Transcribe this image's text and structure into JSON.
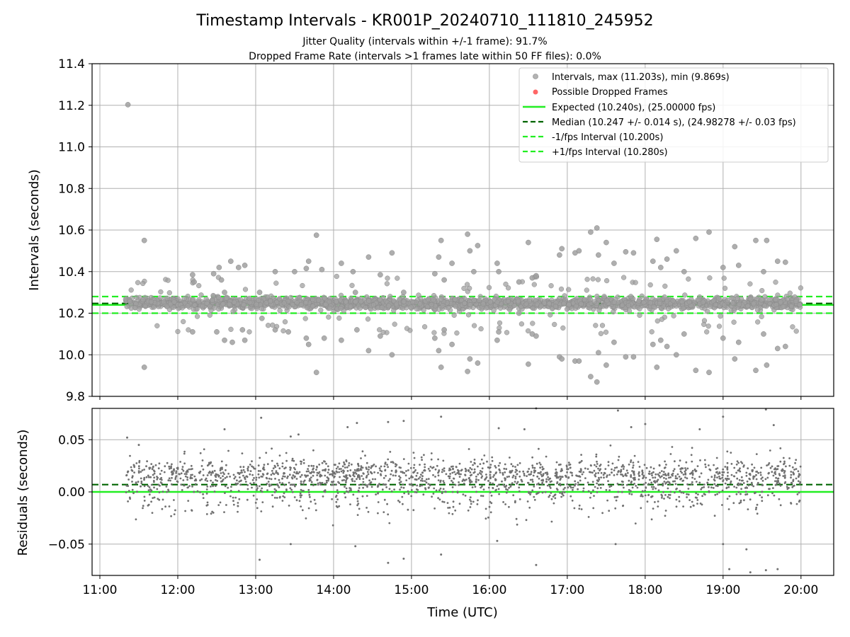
{
  "chart_data": [
    {
      "type": "scatter",
      "panel": "top",
      "title": "Timestamp Intervals - KR001P_20240710_111810_245952",
      "subtitle_lines": [
        "Jitter Quality (intervals within +/-1 frame): 91.7%",
        "Dropped Frame Rate (intervals >1 frames late within 50 FF files): 0.0%"
      ],
      "ylabel": "Intervals (seconds)",
      "ylim": [
        9.8,
        11.4
      ],
      "yticks": [
        "9.8",
        "10.0",
        "10.2",
        "10.4",
        "10.6",
        "10.8",
        "11.0",
        "11.2",
        "11.4"
      ],
      "xlim_hours": [
        10.9,
        20.42
      ],
      "grid": true,
      "legend_position": "top-right",
      "x_range_hours": [
        11.33,
        20.0
      ],
      "series": [
        {
          "name": "Intervals, max (11.203s), min (9.869s)",
          "color": "#a0a0a0",
          "type": "scatter",
          "core_center": 10.247,
          "core_spread": 0.014,
          "max": 11.203,
          "min": 9.869,
          "count": 1800
        },
        {
          "name": "Possible Dropped Frames",
          "color": "#ff6666",
          "type": "scatter",
          "count": 0
        },
        {
          "name": "Expected (10.240s), (25.00000 fps)",
          "color": "#22ee22",
          "type": "hline",
          "y": 10.24,
          "dash": "solid"
        },
        {
          "name": "Median (10.247 +/- 0.014 s), (24.98278 +/- 0.03 fps)",
          "color": "#006400",
          "type": "hline",
          "y": 10.247,
          "dash": "dashed"
        },
        {
          "name": "-1/fps Interval (10.200s)",
          "color": "#22ee22",
          "type": "hline",
          "y": 10.2,
          "dash": "dashed"
        },
        {
          "name": "+1/fps Interval (10.280s)",
          "color": "#22ee22",
          "type": "hline",
          "y": 10.28,
          "dash": "dashed"
        }
      ],
      "outliers": [
        {
          "x": 11.36,
          "y": 11.203
        },
        {
          "x": 11.57,
          "y": 10.55
        },
        {
          "x": 11.57,
          "y": 9.94
        },
        {
          "x": 12.19,
          "y": 10.385
        },
        {
          "x": 12.19,
          "y": 10.11
        },
        {
          "x": 12.21,
          "y": 10.35
        },
        {
          "x": 12.46,
          "y": 10.39
        },
        {
          "x": 12.5,
          "y": 10.11
        },
        {
          "x": 12.53,
          "y": 10.42
        },
        {
          "x": 12.56,
          "y": 10.36
        },
        {
          "x": 12.6,
          "y": 10.3
        },
        {
          "x": 12.6,
          "y": 10.07
        },
        {
          "x": 12.68,
          "y": 10.45
        },
        {
          "x": 12.7,
          "y": 10.06
        },
        {
          "x": 12.78,
          "y": 10.42
        },
        {
          "x": 12.83,
          "y": 10.12
        },
        {
          "x": 12.86,
          "y": 10.43
        },
        {
          "x": 12.86,
          "y": 10.07
        },
        {
          "x": 13.05,
          "y": 10.3
        },
        {
          "x": 13.08,
          "y": 10.175
        },
        {
          "x": 13.25,
          "y": 10.4
        },
        {
          "x": 13.25,
          "y": 10.12
        },
        {
          "x": 13.42,
          "y": 10.11
        },
        {
          "x": 13.5,
          "y": 10.4
        },
        {
          "x": 13.65,
          "y": 10.415
        },
        {
          "x": 13.65,
          "y": 10.08
        },
        {
          "x": 13.68,
          "y": 10.45
        },
        {
          "x": 13.68,
          "y": 10.05
        },
        {
          "x": 13.78,
          "y": 10.575
        },
        {
          "x": 13.78,
          "y": 9.915
        },
        {
          "x": 13.85,
          "y": 10.41
        },
        {
          "x": 13.88,
          "y": 10.08
        },
        {
          "x": 14.1,
          "y": 10.44
        },
        {
          "x": 14.1,
          "y": 10.07
        },
        {
          "x": 14.25,
          "y": 10.4
        },
        {
          "x": 14.28,
          "y": 10.3
        },
        {
          "x": 14.3,
          "y": 10.12
        },
        {
          "x": 14.45,
          "y": 10.47
        },
        {
          "x": 14.45,
          "y": 10.02
        },
        {
          "x": 14.6,
          "y": 10.385
        },
        {
          "x": 14.6,
          "y": 10.09
        },
        {
          "x": 14.75,
          "y": 10.49
        },
        {
          "x": 14.75,
          "y": 10.0
        },
        {
          "x": 14.9,
          "y": 10.3
        },
        {
          "x": 15.3,
          "y": 10.39
        },
        {
          "x": 15.3,
          "y": 10.08
        },
        {
          "x": 15.35,
          "y": 10.47
        },
        {
          "x": 15.35,
          "y": 10.02
        },
        {
          "x": 15.38,
          "y": 10.55
        },
        {
          "x": 15.38,
          "y": 9.94
        },
        {
          "x": 15.42,
          "y": 10.36
        },
        {
          "x": 15.42,
          "y": 10.12
        },
        {
          "x": 15.52,
          "y": 10.44
        },
        {
          "x": 15.52,
          "y": 10.05
        },
        {
          "x": 15.72,
          "y": 10.58
        },
        {
          "x": 15.72,
          "y": 9.92
        },
        {
          "x": 15.75,
          "y": 10.5
        },
        {
          "x": 15.75,
          "y": 9.98
        },
        {
          "x": 15.8,
          "y": 10.4
        },
        {
          "x": 15.85,
          "y": 10.525
        },
        {
          "x": 15.85,
          "y": 9.96
        },
        {
          "x": 16.1,
          "y": 10.44
        },
        {
          "x": 16.1,
          "y": 10.07
        },
        {
          "x": 16.12,
          "y": 10.4
        },
        {
          "x": 16.12,
          "y": 10.11
        },
        {
          "x": 16.38,
          "y": 10.35
        },
        {
          "x": 16.38,
          "y": 10.2
        },
        {
          "x": 16.5,
          "y": 10.54
        },
        {
          "x": 16.5,
          "y": 9.955
        },
        {
          "x": 16.55,
          "y": 10.37
        },
        {
          "x": 16.55,
          "y": 10.1
        },
        {
          "x": 16.6,
          "y": 10.38
        },
        {
          "x": 16.6,
          "y": 10.09
        },
        {
          "x": 16.9,
          "y": 10.48
        },
        {
          "x": 16.9,
          "y": 9.99
        },
        {
          "x": 16.93,
          "y": 10.51
        },
        {
          "x": 16.93,
          "y": 9.98
        },
        {
          "x": 17.1,
          "y": 10.49
        },
        {
          "x": 17.1,
          "y": 9.97
        },
        {
          "x": 17.15,
          "y": 10.5
        },
        {
          "x": 17.15,
          "y": 9.97
        },
        {
          "x": 17.3,
          "y": 10.59
        },
        {
          "x": 17.3,
          "y": 9.895
        },
        {
          "x": 17.38,
          "y": 10.61
        },
        {
          "x": 17.38,
          "y": 9.869
        },
        {
          "x": 17.4,
          "y": 10.48
        },
        {
          "x": 17.4,
          "y": 10.01
        },
        {
          "x": 17.5,
          "y": 10.54
        },
        {
          "x": 17.5,
          "y": 9.95
        },
        {
          "x": 17.6,
          "y": 10.44
        },
        {
          "x": 17.6,
          "y": 10.06
        },
        {
          "x": 17.75,
          "y": 10.495
        },
        {
          "x": 17.75,
          "y": 9.99
        },
        {
          "x": 17.85,
          "y": 10.49
        },
        {
          "x": 17.85,
          "y": 9.99
        },
        {
          "x": 18.1,
          "y": 10.45
        },
        {
          "x": 18.1,
          "y": 10.05
        },
        {
          "x": 18.15,
          "y": 10.555
        },
        {
          "x": 18.15,
          "y": 9.94
        },
        {
          "x": 18.2,
          "y": 10.42
        },
        {
          "x": 18.2,
          "y": 10.07
        },
        {
          "x": 18.28,
          "y": 10.46
        },
        {
          "x": 18.28,
          "y": 10.04
        },
        {
          "x": 18.4,
          "y": 10.5
        },
        {
          "x": 18.4,
          "y": 10.0
        },
        {
          "x": 18.5,
          "y": 10.4
        },
        {
          "x": 18.5,
          "y": 10.1
        },
        {
          "x": 18.65,
          "y": 10.56
        },
        {
          "x": 18.65,
          "y": 9.925
        },
        {
          "x": 18.82,
          "y": 10.59
        },
        {
          "x": 18.82,
          "y": 9.915
        },
        {
          "x": 19.0,
          "y": 10.42
        },
        {
          "x": 19.0,
          "y": 10.08
        },
        {
          "x": 19.15,
          "y": 10.52
        },
        {
          "x": 19.15,
          "y": 9.98
        },
        {
          "x": 19.2,
          "y": 10.43
        },
        {
          "x": 19.2,
          "y": 10.06
        },
        {
          "x": 19.42,
          "y": 10.55
        },
        {
          "x": 19.42,
          "y": 9.925
        },
        {
          "x": 19.52,
          "y": 10.4
        },
        {
          "x": 19.52,
          "y": 10.1
        },
        {
          "x": 19.56,
          "y": 10.55
        },
        {
          "x": 19.56,
          "y": 9.95
        },
        {
          "x": 19.7,
          "y": 10.45
        },
        {
          "x": 19.7,
          "y": 10.03
        },
        {
          "x": 19.8,
          "y": 10.445
        },
        {
          "x": 19.8,
          "y": 10.04
        }
      ]
    },
    {
      "type": "scatter",
      "panel": "bottom",
      "ylabel": "Residuals (seconds)",
      "xlabel": "Time (UTC)",
      "ylim": [
        -0.08,
        0.08
      ],
      "yticks": [
        "−0.05",
        "0.00",
        "0.05"
      ],
      "xticks": [
        "11:00",
        "12:00",
        "13:00",
        "14:00",
        "15:00",
        "16:00",
        "17:00",
        "18:00",
        "19:00",
        "20:00"
      ],
      "xtick_hours": [
        11,
        12,
        13,
        14,
        15,
        16,
        17,
        18,
        19,
        20
      ],
      "grid": true,
      "series": [
        {
          "name": "residuals",
          "color": "#707070",
          "type": "scatter",
          "core_center": 0.008,
          "core_spread": 0.014,
          "count": 2000
        },
        {
          "name": "expected",
          "color": "#22ee22",
          "type": "hline",
          "y": 0.0,
          "dash": "solid"
        },
        {
          "name": "median",
          "color": "#006400",
          "type": "hline",
          "y": 0.007,
          "dash": "dashed"
        }
      ],
      "outliers": [
        {
          "x": 11.35,
          "y": 0.052
        },
        {
          "x": 11.5,
          "y": 0.045
        },
        {
          "x": 12.6,
          "y": 0.06
        },
        {
          "x": 13.07,
          "y": 0.071
        },
        {
          "x": 13.45,
          "y": 0.053
        },
        {
          "x": 13.55,
          "y": 0.055
        },
        {
          "x": 14.18,
          "y": 0.062
        },
        {
          "x": 14.3,
          "y": 0.066
        },
        {
          "x": 14.7,
          "y": 0.067
        },
        {
          "x": 14.9,
          "y": 0.068
        },
        {
          "x": 15.38,
          "y": 0.072
        },
        {
          "x": 16.12,
          "y": 0.061
        },
        {
          "x": 16.45,
          "y": 0.06
        },
        {
          "x": 16.6,
          "y": 0.08
        },
        {
          "x": 17.65,
          "y": 0.078
        },
        {
          "x": 17.82,
          "y": 0.062
        },
        {
          "x": 18.0,
          "y": 0.065
        },
        {
          "x": 18.7,
          "y": 0.06
        },
        {
          "x": 19.0,
          "y": 0.072
        },
        {
          "x": 19.55,
          "y": 0.079
        },
        {
          "x": 19.65,
          "y": 0.064
        },
        {
          "x": 13.05,
          "y": -0.065
        },
        {
          "x": 13.45,
          "y": -0.05
        },
        {
          "x": 14.28,
          "y": -0.052
        },
        {
          "x": 14.7,
          "y": -0.068
        },
        {
          "x": 14.9,
          "y": -0.064
        },
        {
          "x": 15.38,
          "y": -0.06
        },
        {
          "x": 16.1,
          "y": -0.047
        },
        {
          "x": 16.6,
          "y": -0.07
        },
        {
          "x": 17.62,
          "y": -0.05
        },
        {
          "x": 19.0,
          "y": -0.05
        },
        {
          "x": 19.08,
          "y": -0.074
        },
        {
          "x": 19.3,
          "y": -0.055
        },
        {
          "x": 19.55,
          "y": -0.075
        },
        {
          "x": 19.7,
          "y": -0.074
        },
        {
          "x": 19.35,
          "y": -0.077
        }
      ]
    }
  ]
}
